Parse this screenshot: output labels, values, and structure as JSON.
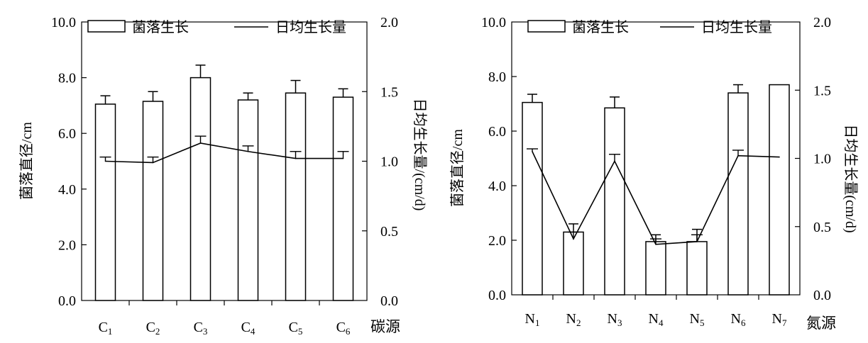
{
  "chart_data": [
    {
      "type": "bar",
      "categories": [
        "C1",
        "C2",
        "C3",
        "C4",
        "C5",
        "C6"
      ],
      "category_labels": [
        {
          "base": "C",
          "sub": "1"
        },
        {
          "base": "C",
          "sub": "2"
        },
        {
          "base": "C",
          "sub": "3"
        },
        {
          "base": "C",
          "sub": "4"
        },
        {
          "base": "C",
          "sub": "5"
        },
        {
          "base": "C",
          "sub": "6"
        }
      ],
      "series": [
        {
          "name": "菌落生长",
          "kind": "bar",
          "axis": "left",
          "values": [
            7.05,
            7.15,
            8.0,
            7.2,
            7.45,
            7.3
          ],
          "errors": [
            0.3,
            0.35,
            0.45,
            0.25,
            0.45,
            0.3
          ]
        },
        {
          "name": "日均生长量",
          "kind": "line",
          "axis": "right",
          "values": [
            1.0,
            0.99,
            1.13,
            1.07,
            1.02,
            1.02
          ],
          "errors": [
            0.03,
            0.04,
            0.05,
            0.04,
            0.05,
            0.05
          ]
        }
      ],
      "xlabel": "碳源",
      "ylabel": "菌落直径/cm",
      "ylabel_right": "日均生长量/(cm/d)",
      "ylim": [
        0,
        10
      ],
      "ylim_right": [
        0,
        2
      ],
      "yticks": [
        "0.0",
        "2.0",
        "4.0",
        "6.0",
        "8.0",
        "10.0"
      ],
      "yticks_right": [
        "0.0",
        "0.5",
        "1.0",
        "1.5",
        "2.0"
      ],
      "legend_position": "top",
      "grid": false
    },
    {
      "type": "bar",
      "categories": [
        "N1",
        "N2",
        "N3",
        "N4",
        "N5",
        "N6",
        "N7"
      ],
      "category_labels": [
        {
          "base": "N",
          "sub": "1"
        },
        {
          "base": "N",
          "sub": "2"
        },
        {
          "base": "N",
          "sub": "3"
        },
        {
          "base": "N",
          "sub": "4"
        },
        {
          "base": "N",
          "sub": "5"
        },
        {
          "base": "N",
          "sub": "6"
        },
        {
          "base": "N",
          "sub": "7"
        }
      ],
      "series": [
        {
          "name": "菌落生长",
          "kind": "bar",
          "axis": "left",
          "values": [
            7.05,
            2.3,
            6.85,
            1.95,
            1.95,
            7.4,
            7.7
          ],
          "errors": [
            0.3,
            0.3,
            0.4,
            0.25,
            0.45,
            0.3,
            0
          ]
        },
        {
          "name": "日均生长量",
          "kind": "line",
          "axis": "right",
          "values": [
            1.05,
            0.41,
            0.98,
            0.37,
            0.39,
            1.02,
            1.01
          ],
          "errors": [
            0.02,
            0.05,
            0.05,
            0.04,
            0.05,
            0.04,
            0
          ]
        }
      ],
      "xlabel": "氮源",
      "ylabel": "菌落直径/cm",
      "ylabel_right": "日均生长量(cm/d)",
      "ylim": [
        0,
        10
      ],
      "ylim_right": [
        0,
        2
      ],
      "yticks": [
        "0.0",
        "2.0",
        "4.0",
        "6.0",
        "8.0",
        "10.0"
      ],
      "yticks_right": [
        "0.0",
        "0.5",
        "1.0",
        "1.5",
        "2.0"
      ],
      "legend_position": "top",
      "grid": false
    }
  ]
}
